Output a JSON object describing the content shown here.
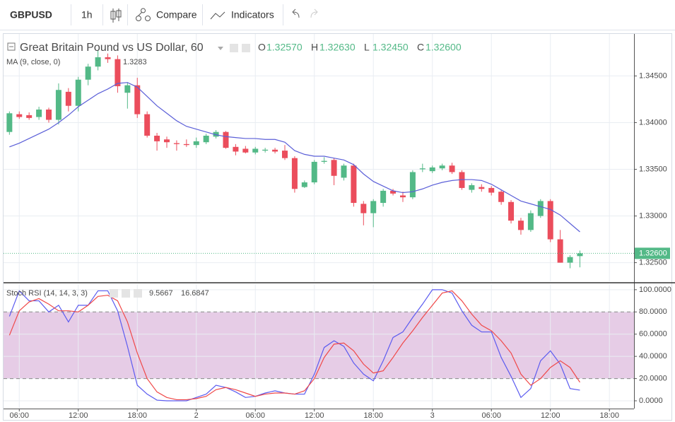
{
  "toolbar": {
    "symbol": "GBPUSD",
    "interval": "1h",
    "compare": "Compare",
    "indicators": "Indicators"
  },
  "chart_data": [
    {
      "type": "candlestick",
      "title": "Great Britain Pound vs US Dollar, 60",
      "ohlc_legend": [
        {
          "label": "O",
          "value": "1.32570"
        },
        {
          "label": "H",
          "value": "1.32630"
        },
        {
          "label": "L",
          "value": "1.32450"
        },
        {
          "label": "C",
          "value": "1.32600"
        }
      ],
      "up_color": "#53b987",
      "down_color": "#eb4d5c",
      "x": [
        5,
        6,
        7,
        8,
        9,
        10,
        11,
        12,
        13,
        14,
        15,
        16,
        17,
        18,
        19,
        20,
        21,
        22,
        23,
        24,
        25,
        26,
        27,
        28,
        29,
        30,
        31,
        32,
        33,
        34,
        35,
        36,
        37,
        38,
        39,
        40,
        41,
        42,
        43,
        44,
        45,
        46,
        47,
        48,
        49,
        50,
        51,
        52,
        53,
        54,
        55,
        56,
        57,
        58,
        59,
        60,
        61,
        62,
        63
      ],
      "open": [
        1.339,
        1.3409,
        1.3408,
        1.3406,
        1.3414,
        1.3403,
        1.3433,
        1.3418,
        1.3446,
        1.346,
        1.347,
        1.3468,
        1.3432,
        1.344,
        1.3409,
        1.3386,
        1.3382,
        1.3378,
        1.3377,
        1.3376,
        1.3379,
        1.3385,
        1.339,
        1.3374,
        1.3372,
        1.3368,
        1.337,
        1.3371,
        1.337,
        1.3362,
        1.3331,
        1.3336,
        1.3358,
        1.336,
        1.3341,
        1.3354,
        1.3313,
        1.3303,
        1.3314,
        1.3327,
        1.3322,
        1.332,
        1.335,
        1.3348,
        1.3351,
        1.3354,
        1.3347,
        1.3328,
        1.3331,
        1.333,
        1.3326,
        1.3315,
        1.3295,
        1.3285,
        1.33,
        1.3316,
        1.3275,
        1.325,
        1.3257
      ],
      "high": [
        1.3412,
        1.3412,
        1.3411,
        1.3417,
        1.3416,
        1.3442,
        1.3437,
        1.3449,
        1.3463,
        1.3478,
        1.3474,
        1.3472,
        1.3443,
        1.3448,
        1.3412,
        1.3389,
        1.3385,
        1.3381,
        1.3382,
        1.3384,
        1.3388,
        1.3392,
        1.3391,
        1.3377,
        1.3375,
        1.3374,
        1.3373,
        1.3373,
        1.3376,
        1.3364,
        1.3338,
        1.336,
        1.3363,
        1.3362,
        1.3356,
        1.3356,
        1.3316,
        1.3318,
        1.3329,
        1.3329,
        1.3326,
        1.3349,
        1.3356,
        1.3354,
        1.3356,
        1.3357,
        1.3349,
        1.3335,
        1.3334,
        1.3332,
        1.3328,
        1.3317,
        1.3298,
        1.3306,
        1.3318,
        1.3318,
        1.3285,
        1.3258,
        1.3263
      ],
      "low": [
        1.3387,
        1.3404,
        1.3403,
        1.3403,
        1.34,
        1.3398,
        1.3412,
        1.3412,
        1.344,
        1.3456,
        1.3464,
        1.3432,
        1.3415,
        1.3405,
        1.3384,
        1.337,
        1.3373,
        1.337,
        1.3374,
        1.3373,
        1.3377,
        1.3383,
        1.3372,
        1.3365,
        1.3367,
        1.3366,
        1.3368,
        1.3367,
        1.336,
        1.3325,
        1.333,
        1.3334,
        1.3356,
        1.3333,
        1.3338,
        1.331,
        1.329,
        1.3288,
        1.331,
        1.3322,
        1.3315,
        1.3318,
        1.3347,
        1.3346,
        1.3349,
        1.3345,
        1.3328,
        1.3325,
        1.3326,
        1.3322,
        1.3312,
        1.3292,
        1.328,
        1.3283,
        1.3298,
        1.3272,
        1.325,
        1.3244,
        1.3245
      ],
      "close": [
        1.341,
        1.3406,
        1.3405,
        1.3414,
        1.3403,
        1.3435,
        1.3418,
        1.3446,
        1.346,
        1.347,
        1.3468,
        1.3439,
        1.344,
        1.3409,
        1.3386,
        1.338,
        1.3379,
        1.3377,
        1.3376,
        1.338,
        1.3386,
        1.339,
        1.3373,
        1.3369,
        1.3368,
        1.3372,
        1.3371,
        1.3369,
        1.3362,
        1.3329,
        1.3336,
        1.3358,
        1.3359,
        1.3343,
        1.3354,
        1.3314,
        1.3303,
        1.3316,
        1.3327,
        1.3324,
        1.332,
        1.3347,
        1.3351,
        1.3352,
        1.3354,
        1.3347,
        1.333,
        1.3333,
        1.3329,
        1.3325,
        1.3315,
        1.3295,
        1.3285,
        1.3303,
        1.3316,
        1.3275,
        1.325,
        1.3256,
        1.326
      ],
      "series": [
        {
          "name": "MA (9, close, 0)",
          "color": "#5b5fd8",
          "value_label": "1.3283",
          "values": [
            1.3374,
            1.3378,
            1.3383,
            1.3388,
            1.3393,
            1.34,
            1.3408,
            1.3417,
            1.3424,
            1.3431,
            1.3436,
            1.3442,
            1.3443,
            1.3438,
            1.3428,
            1.3418,
            1.341,
            1.3402,
            1.3396,
            1.3393,
            1.339,
            1.3387,
            1.3385,
            1.3384,
            1.3383,
            1.3383,
            1.3382,
            1.3382,
            1.3379,
            1.337,
            1.3366,
            1.3364,
            1.3364,
            1.3362,
            1.336,
            1.3355,
            1.3345,
            1.3337,
            1.3332,
            1.3327,
            1.3325,
            1.3326,
            1.3329,
            1.3333,
            1.3336,
            1.3338,
            1.3339,
            1.3339,
            1.3338,
            1.3334,
            1.3328,
            1.3322,
            1.3316,
            1.3313,
            1.331,
            1.3307,
            1.3301,
            1.3292,
            1.3283
          ]
        }
      ],
      "last_price": {
        "value": 1.326,
        "label": "1.32600"
      },
      "xlim": [
        4.4,
        68.5
      ],
      "xticks": [
        {
          "value": 6,
          "label": "06:00"
        },
        {
          "value": 12,
          "label": "12:00"
        },
        {
          "value": 18,
          "label": "18:00"
        },
        {
          "value": 24,
          "label": "2"
        },
        {
          "value": 30,
          "label": "06:00"
        },
        {
          "value": 36,
          "label": "12:00"
        },
        {
          "value": 42,
          "label": "18:00"
        },
        {
          "value": 48,
          "label": "3"
        },
        {
          "value": 54,
          "label": "06:00"
        },
        {
          "value": 60,
          "label": "12:00"
        },
        {
          "value": 66,
          "label": "18:00"
        }
      ],
      "ylim": [
        1.323,
        1.3495
      ],
      "yticks": [
        {
          "value": 1.325,
          "label": "1.32500"
        },
        {
          "value": 1.33,
          "label": "1.33000"
        },
        {
          "value": 1.335,
          "label": "1.33500"
        },
        {
          "value": 1.34,
          "label": "1.34000"
        },
        {
          "value": 1.345,
          "label": "1.34500"
        }
      ],
      "grid": true
    },
    {
      "type": "line",
      "title": "Stoch RSI (14, 14, 3, 3)",
      "series": [
        {
          "color": "#5b5bf0",
          "value_label": "9.5667",
          "values": [
            76,
            99,
            90,
            90,
            80,
            86,
            71,
            86,
            86,
            99,
            99,
            81,
            49,
            14,
            6,
            0.6,
            0,
            0,
            0,
            3,
            6,
            14,
            12,
            8,
            3,
            4,
            7,
            9,
            7,
            6,
            6,
            24,
            48,
            54,
            49,
            34,
            24,
            18,
            36,
            57,
            62,
            75,
            87,
            100,
            100,
            97,
            81,
            68,
            62,
            62,
            39,
            22,
            3,
            11,
            36,
            45,
            33,
            11,
            9.5667
          ]
        },
        {
          "color": "#f04848",
          "value_label": "16.6847",
          "values": [
            59,
            81,
            89,
            92,
            87,
            81,
            81,
            80,
            86,
            94,
            95,
            90,
            71,
            43,
            20,
            8,
            3,
            1,
            1,
            2,
            4,
            10,
            12,
            10,
            7,
            4,
            6,
            7,
            7,
            6,
            9,
            20,
            39,
            51,
            52,
            45,
            33,
            25,
            27,
            39,
            52,
            63,
            75,
            86,
            97,
            99,
            90,
            78,
            68,
            63,
            54,
            43,
            24,
            14,
            20,
            30,
            36,
            30,
            16.6847
          ]
        }
      ],
      "bands": [
        20,
        80
      ],
      "band_color": "#e6cce6",
      "ylim": [
        -7,
        105
      ],
      "yticks": [
        {
          "value": 0,
          "label": "0.0000"
        },
        {
          "value": 20,
          "label": "20.0000"
        },
        {
          "value": 40,
          "label": "40.0000"
        },
        {
          "value": 60,
          "label": "60.0000"
        },
        {
          "value": 80,
          "label": "80.0000"
        },
        {
          "value": 100,
          "label": "100.0000"
        }
      ],
      "grid": true
    }
  ]
}
